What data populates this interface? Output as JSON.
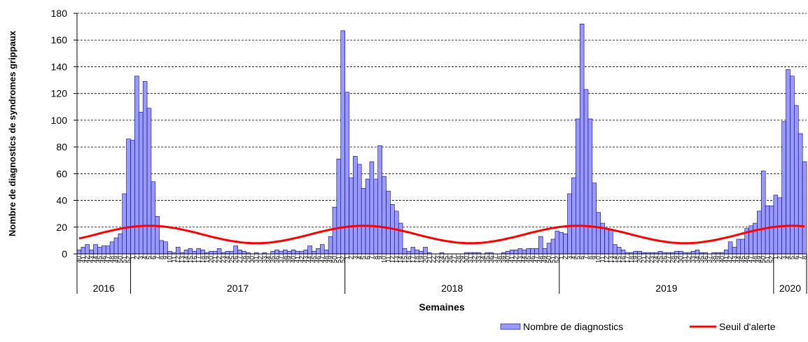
{
  "chart_data": {
    "type": "bar_line",
    "y_label": "Nombre de diagnostics de syndromes grippaux",
    "x_label": "Semaines",
    "categories": [
      "40",
      "41",
      "42",
      "43",
      "44",
      "45",
      "46",
      "47",
      "48",
      "49",
      "50",
      "51",
      "52",
      "1",
      "2",
      "3",
      "4",
      "5",
      "6",
      "7",
      "8",
      "9",
      "10",
      "11",
      "12",
      "13",
      "14",
      "15",
      "16",
      "17",
      "18",
      "19",
      "20",
      "21",
      "22",
      "23",
      "24",
      "25",
      "26",
      "27",
      "28",
      "29",
      "30",
      "31",
      "32",
      "33",
      "34",
      "35",
      "36",
      "37",
      "38",
      "39",
      "40",
      "41",
      "42",
      "43",
      "44",
      "45",
      "46",
      "47",
      "48",
      "49",
      "50",
      "51",
      "52",
      "1",
      "2",
      "3",
      "4",
      "5",
      "6",
      "7",
      "8",
      "9",
      "10",
      "11",
      "12",
      "13",
      "14",
      "15",
      "16",
      "17",
      "18",
      "19",
      "20",
      "21",
      "22",
      "23",
      "24",
      "25",
      "26",
      "27",
      "28",
      "29",
      "30",
      "31",
      "32",
      "33",
      "34",
      "35",
      "36",
      "37",
      "38",
      "39",
      "40",
      "41",
      "42",
      "43",
      "44",
      "45",
      "46",
      "47",
      "48",
      "49",
      "50",
      "51",
      "52",
      "1",
      "2",
      "3",
      "4",
      "5",
      "6",
      "7",
      "8",
      "9",
      "10",
      "11",
      "12",
      "13",
      "14",
      "15",
      "16",
      "17",
      "18",
      "19",
      "20",
      "21",
      "22",
      "23",
      "24",
      "25",
      "26",
      "27",
      "28",
      "29",
      "30",
      "31",
      "32",
      "33",
      "34",
      "35",
      "36",
      "37",
      "38",
      "39",
      "40",
      "41",
      "42",
      "43",
      "44",
      "45",
      "46",
      "47",
      "48",
      "49",
      "50",
      "51",
      "52",
      "1",
      "2",
      "3",
      "4",
      "5",
      "6",
      "7",
      "8"
    ],
    "year_groups": [
      "2016",
      "2017",
      "2018",
      "2019",
      "2020"
    ],
    "series": [
      {
        "name": "Nombre de diagnostics",
        "kind": "bar",
        "color": "#9999ff",
        "values": [
          3,
          5,
          7,
          3,
          7,
          5,
          6,
          6,
          9,
          12,
          15,
          45,
          86,
          85,
          133,
          106,
          129,
          109,
          54,
          28,
          10,
          9,
          2,
          1,
          5,
          1,
          3,
          4,
          2,
          4,
          3,
          1,
          2,
          2,
          4,
          1,
          2,
          2,
          6,
          3,
          2,
          1,
          0,
          1,
          0,
          1,
          0,
          2,
          3,
          2,
          3,
          2,
          3,
          2,
          2,
          3,
          6,
          2,
          4,
          7,
          3,
          13,
          35,
          71,
          167,
          121,
          57,
          73,
          67,
          49,
          56,
          69,
          56,
          81,
          58,
          47,
          37,
          32,
          23,
          4,
          2,
          5,
          3,
          2,
          5,
          1,
          0,
          0,
          1,
          0,
          0,
          0,
          0,
          0,
          1,
          1,
          1,
          1,
          0,
          1,
          1,
          0,
          0,
          1,
          2,
          3,
          3,
          4,
          3,
          4,
          4,
          4,
          13,
          4,
          8,
          11,
          17,
          16,
          15,
          45,
          57,
          101,
          172,
          123,
          101,
          53,
          31,
          23,
          19,
          18,
          7,
          5,
          3,
          1,
          1,
          2,
          2,
          1,
          1,
          1,
          1,
          2,
          1,
          1,
          1,
          2,
          2,
          1,
          1,
          2,
          3,
          1,
          1,
          0,
          1,
          1,
          1,
          3,
          9,
          5,
          11,
          11,
          19,
          21,
          23,
          32,
          62,
          36,
          36,
          44,
          42,
          99,
          138,
          133,
          111,
          90,
          69
        ]
      },
      {
        "name": "Seuil d'alerte",
        "kind": "line",
        "color": "#ff0000",
        "values": [
          11.5,
          12.2,
          12.9,
          13.7,
          14.5,
          15.3,
          16.1,
          16.8,
          17.5,
          18.2,
          18.8,
          19.4,
          19.9,
          20.3,
          20.6,
          20.8,
          21.0,
          21.0,
          21.0,
          20.8,
          20.6,
          20.3,
          19.9,
          19.4,
          18.8,
          18.2,
          17.5,
          16.8,
          16.1,
          15.3,
          14.5,
          13.7,
          12.9,
          12.2,
          11.5,
          10.8,
          10.2,
          9.6,
          9.2,
          8.7,
          8.4,
          8.2,
          8.0,
          8.0,
          8.0,
          8.2,
          8.4,
          8.7,
          9.2,
          9.6,
          10.2,
          10.8,
          11.5,
          12.2,
          12.9,
          13.7,
          14.5,
          15.3,
          16.1,
          16.8,
          17.5,
          18.2,
          18.8,
          19.4,
          19.9,
          20.3,
          20.6,
          20.8,
          21.0,
          21.0,
          21.0,
          20.8,
          20.6,
          20.3,
          19.9,
          19.4,
          18.8,
          18.2,
          17.5,
          16.8,
          16.1,
          15.3,
          14.5,
          13.7,
          12.9,
          12.2,
          11.5,
          10.8,
          10.2,
          9.6,
          9.2,
          8.7,
          8.4,
          8.2,
          8.0,
          8.0,
          8.0,
          8.2,
          8.4,
          8.7,
          9.2,
          9.6,
          10.2,
          10.8,
          11.5,
          12.2,
          12.9,
          13.7,
          14.5,
          15.3,
          16.1,
          16.8,
          17.5,
          18.2,
          18.8,
          19.4,
          19.9,
          20.3,
          20.6,
          20.8,
          21.0,
          21.0,
          21.0,
          20.8,
          20.6,
          20.3,
          19.9,
          19.4,
          18.8,
          18.2,
          17.5,
          16.8,
          16.1,
          15.3,
          14.5,
          13.7,
          12.9,
          12.2,
          11.5,
          10.8,
          10.2,
          9.6,
          9.2,
          8.7,
          8.4,
          8.2,
          8.0,
          8.0,
          8.0,
          8.2,
          8.4,
          8.7,
          9.2,
          9.6,
          10.2,
          10.8,
          11.5,
          12.2,
          12.9,
          13.7,
          14.5,
          15.3,
          16.1,
          16.8,
          17.5,
          18.2,
          18.8,
          19.4,
          19.9,
          20.3,
          20.6,
          20.8,
          21.0,
          21.0,
          21.0,
          20.8,
          20.6
        ]
      }
    ],
    "ylim": [
      0,
      180
    ],
    "yticks": [
      0,
      20,
      40,
      60,
      80,
      100,
      120,
      140,
      160,
      180
    ],
    "grid": true
  }
}
